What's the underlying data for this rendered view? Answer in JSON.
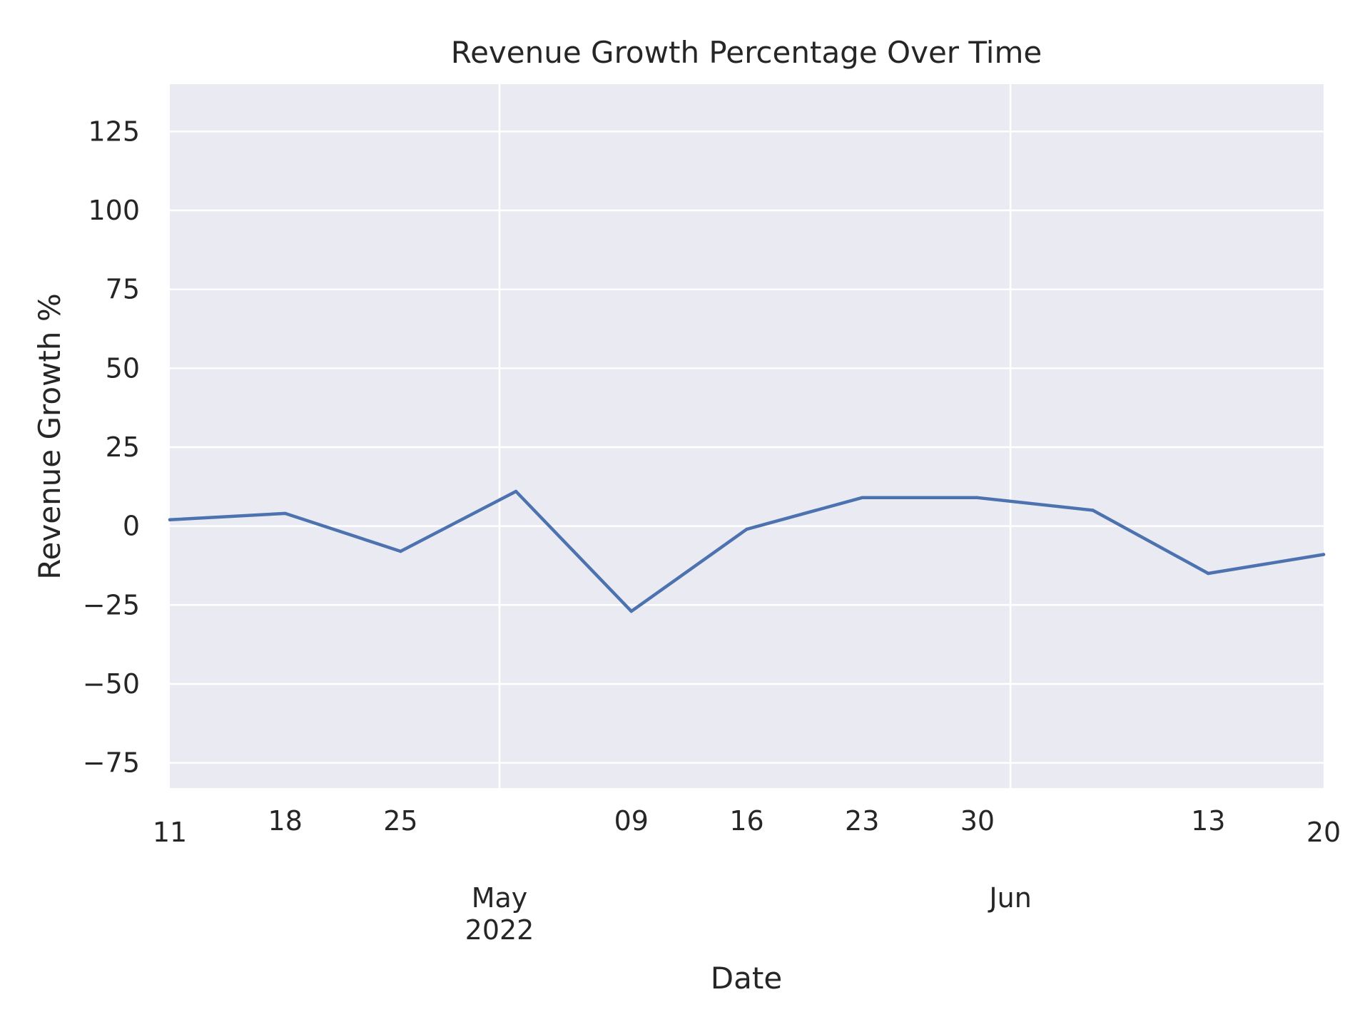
{
  "chart_data": {
    "type": "line",
    "title": "Revenue Growth Percentage Over Time",
    "xlabel": "Date",
    "ylabel": "Revenue Growth %",
    "x": [
      "2022-04-11",
      "2022-04-18",
      "2022-04-25",
      "2022-05-02",
      "2022-05-09",
      "2022-05-16",
      "2022-05-23",
      "2022-05-30",
      "2022-06-06",
      "2022-06-13",
      "2022-06-20"
    ],
    "series": [
      {
        "values": [
          2,
          4,
          -8,
          11,
          -27,
          -1,
          9,
          9,
          5,
          -15,
          -9
        ]
      }
    ],
    "xlim": [
      "2022-04-11",
      "2022-06-20"
    ],
    "ylim": [
      -83,
      140
    ],
    "yticks": [
      -75,
      -50,
      -25,
      0,
      25,
      50,
      75,
      100,
      125
    ],
    "ytick_labels": [
      "−75",
      "−50",
      "−25",
      "0",
      "25",
      "50",
      "75",
      "100",
      "125"
    ],
    "xticks_minor": [
      {
        "date": "2022-04-11",
        "label": "11"
      },
      {
        "date": "2022-04-18",
        "label": "18"
      },
      {
        "date": "2022-04-25",
        "label": "25"
      },
      {
        "date": "2022-05-09",
        "label": "09"
      },
      {
        "date": "2022-05-16",
        "label": "16"
      },
      {
        "date": "2022-05-23",
        "label": "23"
      },
      {
        "date": "2022-05-30",
        "label": "30"
      },
      {
        "date": "2022-06-13",
        "label": "13"
      },
      {
        "date": "2022-06-20",
        "label": "20"
      }
    ],
    "xticks_major": [
      {
        "date": "2022-05-01",
        "label": [
          "May",
          "2022"
        ]
      },
      {
        "date": "2022-06-01",
        "label": [
          "Jun"
        ]
      }
    ],
    "grid": true,
    "colors": {
      "line": "#4c72b0",
      "plot_bg": "#eaeaf2",
      "grid": "#ffffff",
      "text": "#262626"
    }
  }
}
